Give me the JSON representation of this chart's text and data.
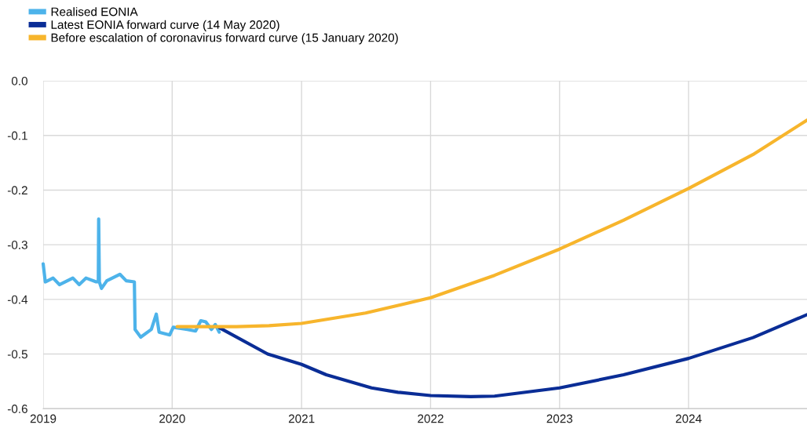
{
  "chart_data": {
    "type": "line",
    "xlim": [
      "2019-01-01",
      "2024-12-01"
    ],
    "xticks": [
      {
        "value": "2019-01-01",
        "label": "2019"
      },
      {
        "value": "2020-01-01",
        "label": "2020"
      },
      {
        "value": "2021-01-01",
        "label": "2021"
      },
      {
        "value": "2022-01-01",
        "label": "2022"
      },
      {
        "value": "2023-01-01",
        "label": "2023"
      },
      {
        "value": "2024-01-01",
        "label": "2024"
      }
    ],
    "ylim": [
      -0.6,
      0
    ],
    "yticks": [
      {
        "value": -0.6,
        "label": "-0.6"
      },
      {
        "value": -0.5,
        "label": "-0.5"
      },
      {
        "value": -0.4,
        "label": "-0.4"
      },
      {
        "value": -0.3,
        "label": "-0.3"
      },
      {
        "value": -0.2,
        "label": "-0.2"
      },
      {
        "value": -0.1,
        "label": "-0.1"
      },
      {
        "value": 0,
        "label": "0.0"
      }
    ],
    "grid": true,
    "legend": "top left",
    "marker": "none",
    "line_style": "solid",
    "series": [
      {
        "name": "Realised EONIA",
        "color": "#4db3ea",
        "x": [
          "2019-01-01",
          "2019-01-07",
          "2019-01-29",
          "2019-02-16",
          "2019-03-26",
          "2019-04-13",
          "2019-05-02",
          "2019-05-31",
          "2019-06-06",
          "2019-06-07",
          "2019-06-09",
          "2019-06-15",
          "2019-06-30",
          "2019-08-06",
          "2019-08-24",
          "2019-09-16",
          "2019-09-18",
          "2019-10-04",
          "2019-11-03",
          "2019-11-17",
          "2019-11-25",
          "2019-12-25",
          "2020-01-04",
          "2020-02-13",
          "2020-03-07",
          "2020-03-22",
          "2020-04-05",
          "2020-04-21",
          "2020-05-02",
          "2020-05-13"
        ],
        "values": [
          -0.335,
          -0.368,
          -0.361,
          -0.373,
          -0.361,
          -0.373,
          -0.361,
          -0.368,
          -0.368,
          -0.253,
          -0.368,
          -0.38,
          -0.366,
          -0.354,
          -0.366,
          -0.368,
          -0.455,
          -0.469,
          -0.455,
          -0.427,
          -0.46,
          -0.465,
          -0.451,
          -0.455,
          -0.458,
          -0.439,
          -0.441,
          -0.455,
          -0.446,
          -0.46
        ]
      },
      {
        "name": "Latest EONIA forward curve (14 May 2020)",
        "color": "#0a2d96",
        "x": [
          "2020-05-14",
          "2020-09-27",
          "2021-01-01",
          "2021-03-12",
          "2021-07-18",
          "2021-10-01",
          "2022-01-01",
          "2022-04-25",
          "2022-07-01",
          "2023-01-01",
          "2023-07-01",
          "2024-01-01",
          "2024-07-01",
          "2024-12-01"
        ],
        "values": [
          -0.452,
          -0.5,
          -0.519,
          -0.538,
          -0.562,
          -0.57,
          -0.576,
          -0.578,
          -0.577,
          -0.562,
          -0.538,
          -0.508,
          -0.47,
          -0.428
        ]
      },
      {
        "name": "Before escalation of coronavirus forward curve (15 January 2020)",
        "color": "#f7b52c",
        "x": [
          "2020-01-15",
          "2020-07-01",
          "2020-10-01",
          "2021-01-01",
          "2021-07-01",
          "2022-01-01",
          "2022-07-01",
          "2023-01-01",
          "2023-07-01",
          "2024-01-01",
          "2024-07-01",
          "2024-12-01"
        ],
        "values": [
          -0.45,
          -0.45,
          -0.448,
          -0.444,
          -0.425,
          -0.397,
          -0.356,
          -0.308,
          -0.255,
          -0.197,
          -0.135,
          -0.072
        ]
      }
    ]
  }
}
